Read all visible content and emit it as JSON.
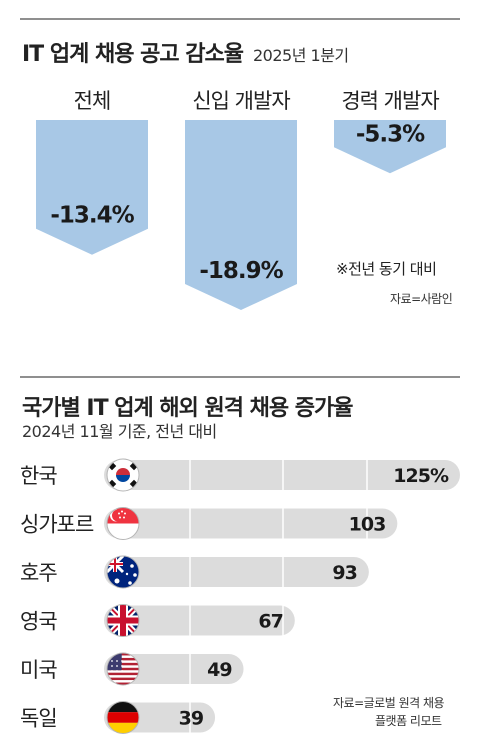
{
  "section1": {
    "title": "IT 업계 채용 공고 감소율",
    "period": "2025년 1분기",
    "note": "※전년 동기 대비",
    "source": "자료=사람인"
  },
  "section2": {
    "title": "국가별 IT 업계 해외 원격 채용 증가율",
    "subtitle": "2024년 11월 기준, 전년 대비",
    "source_line1": "자료=글로벌 원격 채용",
    "source_line2": "플랫폼 리모트"
  },
  "colors": {
    "down_bar": "#a8c8e6",
    "track": "#dcdcdc",
    "rule": "#8f8f8f"
  },
  "chart_data": [
    {
      "type": "bar",
      "orientation": "vertical-down",
      "categories": [
        "전체",
        "신입 개발자",
        "경력 개발자"
      ],
      "values": [
        -13.4,
        -18.9,
        -5.3
      ],
      "value_labels": [
        "-13.4%",
        "-18.9%",
        "-5.3%"
      ],
      "unit": "%"
    },
    {
      "type": "bar",
      "orientation": "horizontal",
      "categories": [
        "한국",
        "싱가포르",
        "호주",
        "영국",
        "미국",
        "독일"
      ],
      "values": [
        125,
        103,
        93,
        67,
        49,
        39
      ],
      "value_labels": [
        "125%",
        "103",
        "93",
        "67",
        "49",
        "39"
      ],
      "flag_icons": [
        "korea-flag-icon",
        "singapore-flag-icon",
        "australia-flag-icon",
        "uk-flag-icon",
        "usa-flag-icon",
        "germany-flag-icon"
      ],
      "xlim": [
        0,
        125
      ],
      "grid": true
    }
  ]
}
